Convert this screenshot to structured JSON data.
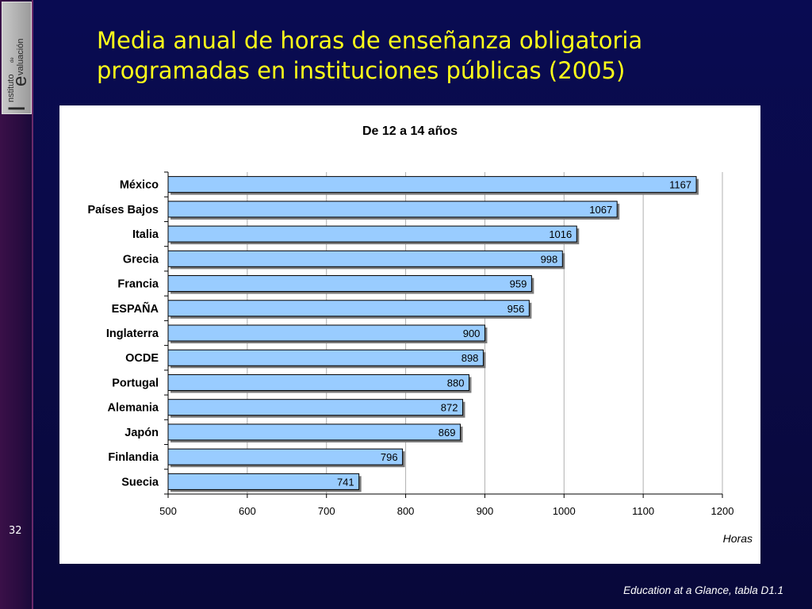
{
  "slide": {
    "title_line1": "Media anual de horas de enseñanza obligatoria",
    "title_line2": "programadas en instituciones públicas (2005)",
    "number": "32",
    "source": "Education at a Glance, tabla D1.1",
    "logo": {
      "big_letters": "IE",
      "line1": "nstituto",
      "de": "de",
      "line2": "valuación"
    }
  },
  "colors": {
    "background": "#0a0a4a",
    "title": "#ffff1a",
    "bar_fill": "#99ccff",
    "bar_stroke": "#000000",
    "grid": "#b0b0b0"
  },
  "chart_data": {
    "type": "bar",
    "orientation": "horizontal",
    "title": "De 12 a 14 años",
    "xlabel": "Horas",
    "ylabel": "",
    "xlim": [
      500,
      1200
    ],
    "xticks": [
      500,
      600,
      700,
      800,
      900,
      1000,
      1100,
      1200
    ],
    "grid": "vertical",
    "categories": [
      "México",
      "Países Bajos",
      "Italia",
      "Grecia",
      "Francia",
      "ESPAÑA",
      "Inglaterra",
      "OCDE",
      "Portugal",
      "Alemania",
      "Japón",
      "Finlandia",
      "Suecia"
    ],
    "values": [
      1167,
      1067,
      1016,
      998,
      959,
      956,
      900,
      898,
      880,
      872,
      869,
      796,
      741
    ],
    "data_labels": true
  }
}
